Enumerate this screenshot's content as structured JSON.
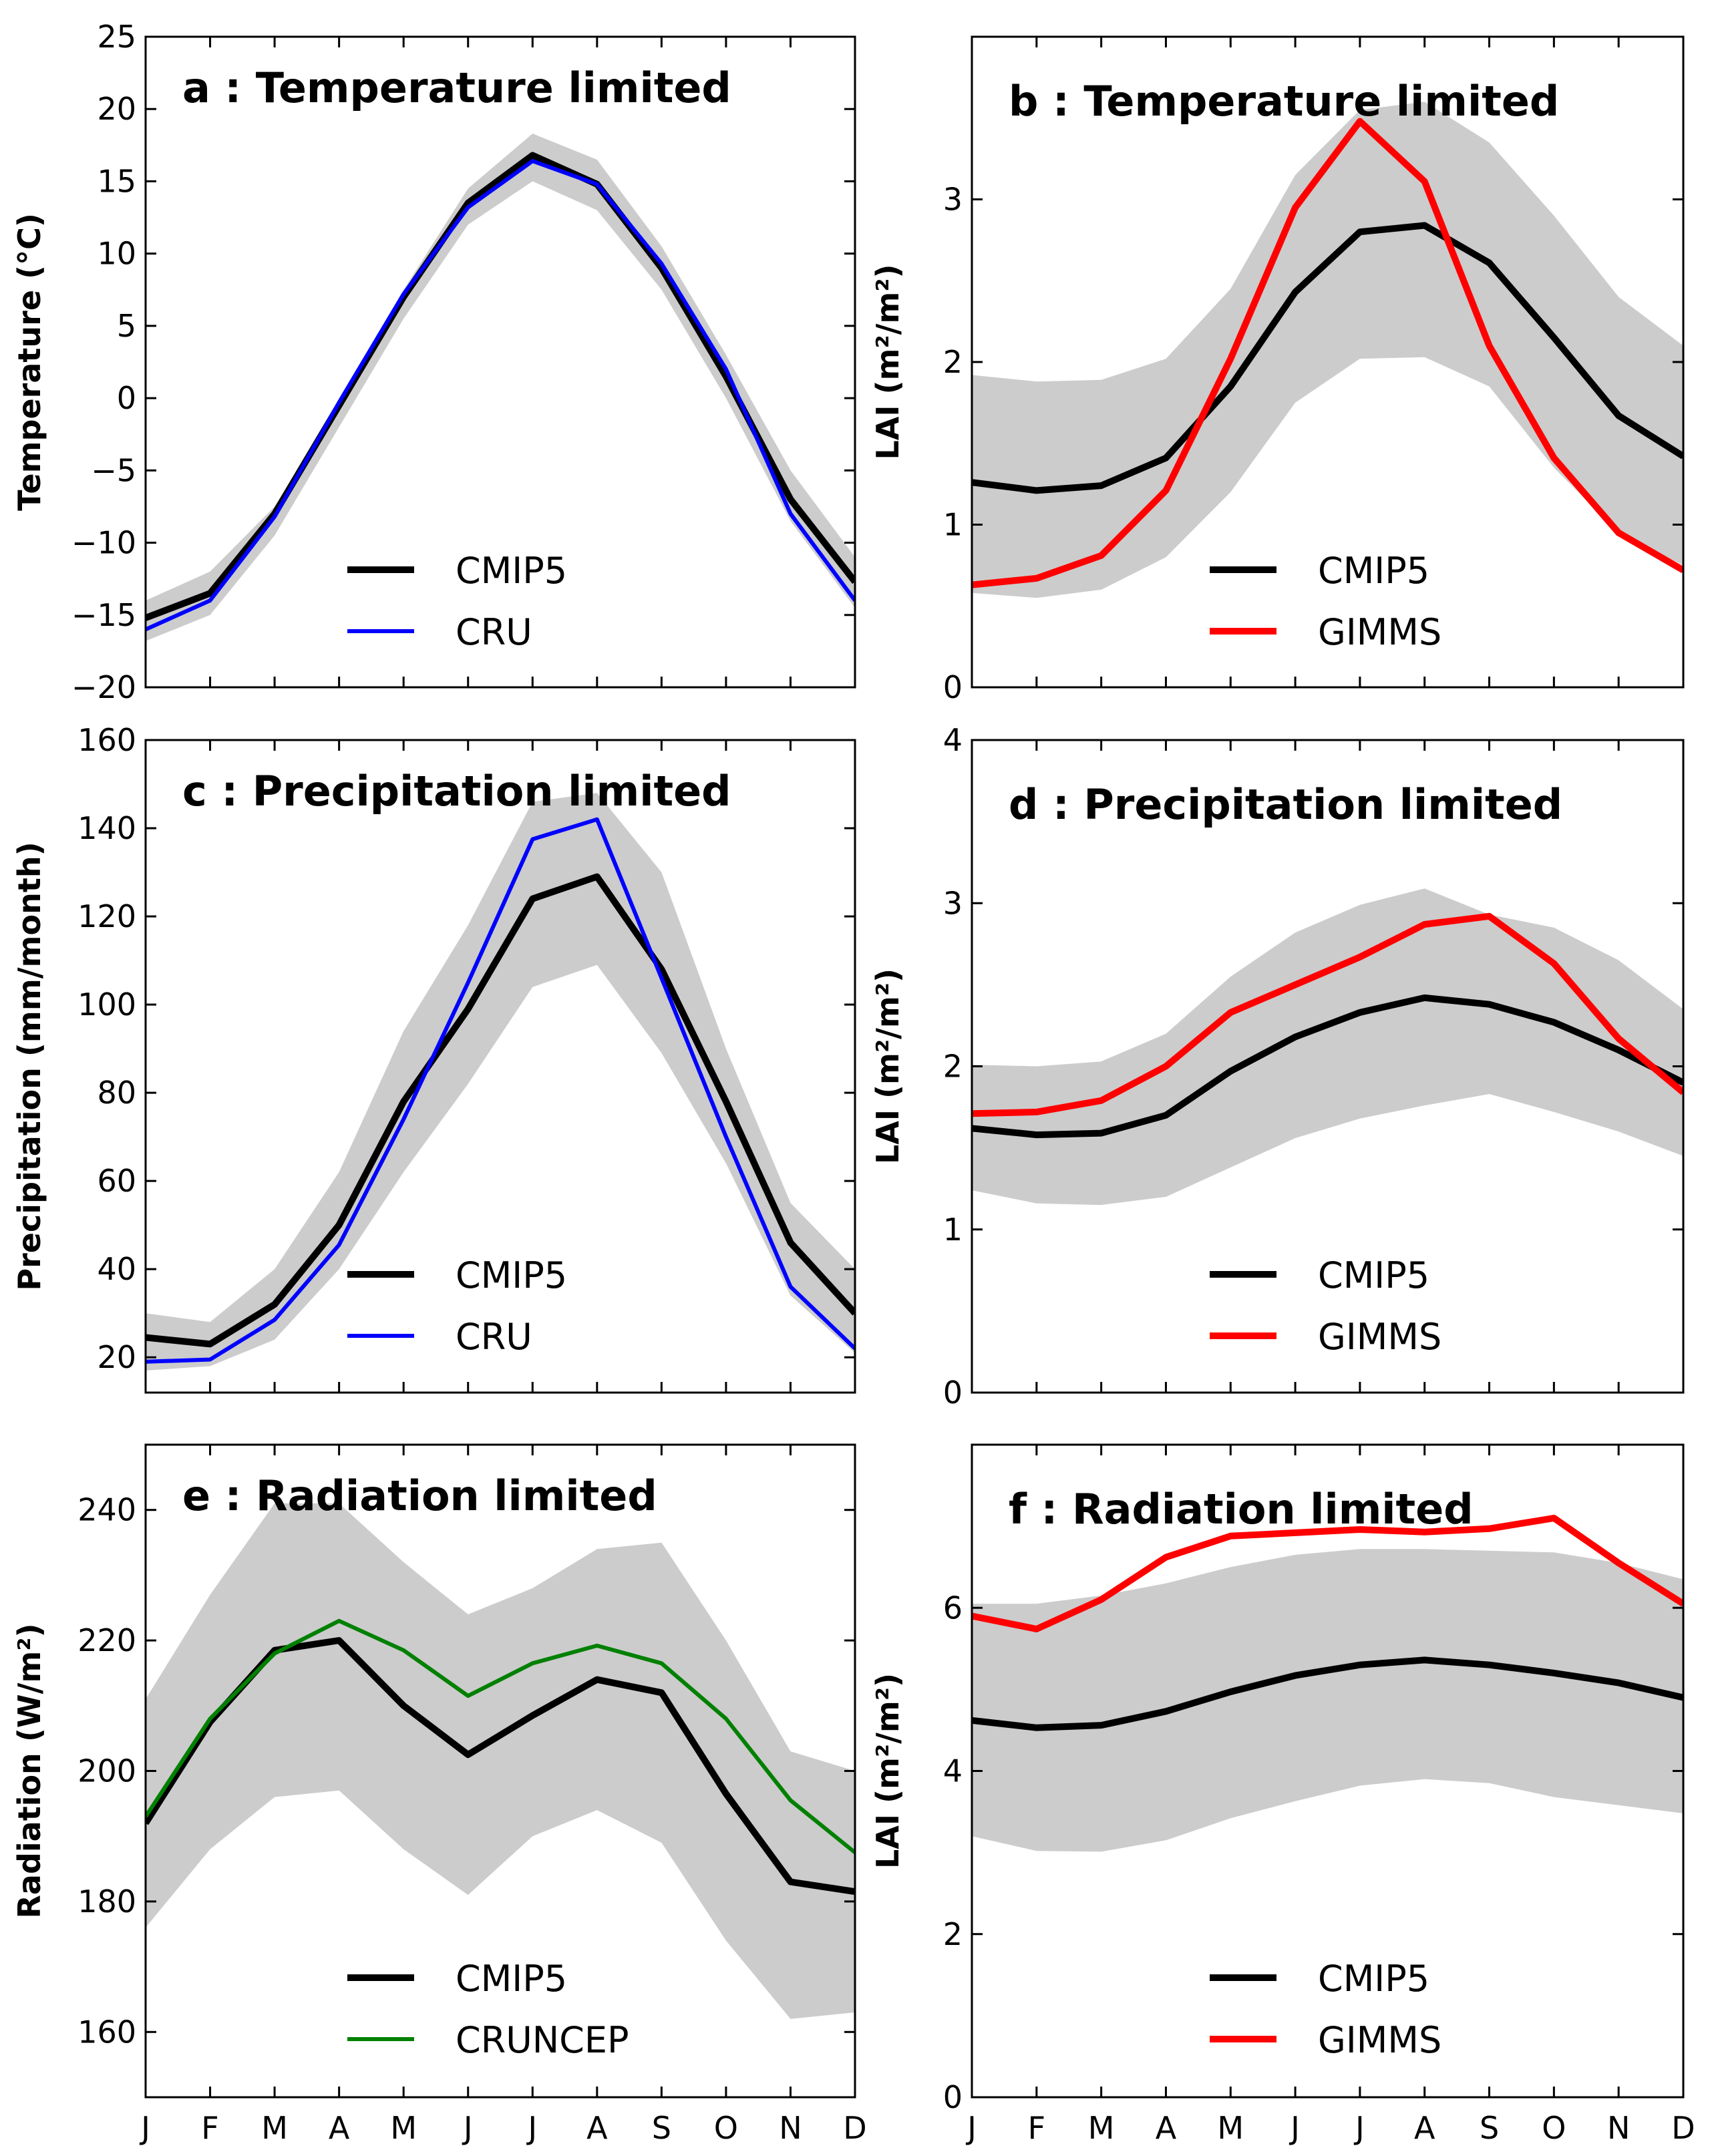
{
  "chart_data": [
    {
      "id": "a",
      "type": "line",
      "title": "a : Temperature limited",
      "ylabel": "Temperature (°C)",
      "ylim": [
        -20,
        25
      ],
      "yticks": [
        -20,
        -15,
        -10,
        -5,
        0,
        5,
        10,
        15,
        20,
        25
      ],
      "ytick_labels": [
        "−20",
        "−15",
        "−10",
        "−5",
        "0",
        "5",
        "10",
        "15",
        "20",
        "25"
      ],
      "categories": [
        "J",
        "F",
        "M",
        "A",
        "M",
        "J",
        "J",
        "A",
        "S",
        "O",
        "N",
        "D"
      ],
      "band": {
        "upper": [
          -14,
          -12,
          -7.5,
          -0.5,
          7.5,
          14.5,
          18.3,
          16.5,
          10.5,
          3,
          -5,
          -11
        ],
        "lower": [
          -16.8,
          -15,
          -9.5,
          -2,
          5.5,
          12,
          15,
          13,
          7.5,
          0,
          -8.5,
          -14.5
        ]
      },
      "series": [
        {
          "name": "CMIP5",
          "color": "#000000",
          "width": 10,
          "values": [
            -15.2,
            -13.5,
            -8,
            -0.5,
            7,
            13.5,
            16.8,
            14.8,
            9,
            1.5,
            -7,
            -12.7
          ]
        },
        {
          "name": "CRU",
          "color": "#0000ff",
          "width": 6,
          "values": [
            -16,
            -14,
            -8.2,
            -0.3,
            7.2,
            13.2,
            16.4,
            14.8,
            9.3,
            2,
            -8,
            -14
          ]
        }
      ]
    },
    {
      "id": "b",
      "type": "line",
      "title": "b : Temperature limited",
      "ylabel": "LAI (m²/m²)",
      "ylim": [
        0,
        4
      ],
      "yticks": [
        0,
        1,
        2,
        3
      ],
      "ytick_labels": [
        "0",
        "1",
        "2",
        "3"
      ],
      "categories": [
        "J",
        "F",
        "M",
        "A",
        "M",
        "J",
        "J",
        "A",
        "S",
        "O",
        "N",
        "D"
      ],
      "band": {
        "upper": [
          1.92,
          1.88,
          1.89,
          2.02,
          2.45,
          3.15,
          3.55,
          3.6,
          3.35,
          2.9,
          2.4,
          2.1
        ],
        "lower": [
          0.58,
          0.55,
          0.6,
          0.8,
          1.2,
          1.75,
          2.02,
          2.03,
          1.85,
          1.35,
          0.95,
          0.75
        ]
      },
      "series": [
        {
          "name": "CMIP5",
          "color": "#000000",
          "width": 10,
          "values": [
            1.26,
            1.21,
            1.24,
            1.41,
            1.85,
            2.43,
            2.8,
            2.84,
            2.61,
            2.15,
            1.67,
            1.42
          ]
        },
        {
          "name": "GIMMS",
          "color": "#ff0000",
          "width": 10,
          "values": [
            0.63,
            0.67,
            0.81,
            1.21,
            2.02,
            2.95,
            3.48,
            3.11,
            2.1,
            1.41,
            0.95,
            0.72
          ]
        }
      ]
    },
    {
      "id": "c",
      "type": "line",
      "title": "c : Precipitation limited",
      "ylabel": "Precipitation (mm/month)",
      "ylim": [
        12,
        160
      ],
      "yticks": [
        20,
        40,
        60,
        80,
        100,
        120,
        140,
        160
      ],
      "ytick_labels": [
        "20",
        "40",
        "60",
        "80",
        "100",
        "120",
        "140",
        "160"
      ],
      "categories": [
        "J",
        "F",
        "M",
        "A",
        "M",
        "J",
        "J",
        "A",
        "S",
        "O",
        "N",
        "D"
      ],
      "band": {
        "upper": [
          30,
          28,
          40,
          62,
          94,
          118,
          146,
          148,
          130,
          90,
          55,
          40
        ],
        "lower": [
          17,
          18,
          24,
          40,
          62,
          82,
          104,
          109,
          89,
          64,
          34,
          21
        ]
      },
      "series": [
        {
          "name": "CMIP5",
          "color": "#000000",
          "width": 10,
          "values": [
            24.5,
            23,
            32,
            50,
            78,
            99,
            124,
            129,
            108,
            78,
            46,
            30
          ]
        },
        {
          "name": "CRU",
          "color": "#0000ff",
          "width": 6,
          "values": [
            19,
            19.5,
            28.5,
            45.5,
            74,
            105,
            137.5,
            142,
            106,
            70,
            36,
            22
          ]
        }
      ]
    },
    {
      "id": "d",
      "type": "line",
      "title": "d : Precipitation limited",
      "ylabel": "LAI (m²/m²)",
      "ylim": [
        0,
        4
      ],
      "yticks": [
        0,
        1,
        2,
        3,
        4
      ],
      "ytick_labels": [
        "0",
        "1",
        "2",
        "3",
        "4"
      ],
      "categories": [
        "J",
        "F",
        "M",
        "A",
        "M",
        "J",
        "J",
        "A",
        "S",
        "O",
        "N",
        "D"
      ],
      "band": {
        "upper": [
          2.01,
          2.0,
          2.03,
          2.2,
          2.55,
          2.82,
          2.99,
          3.09,
          2.93,
          2.85,
          2.65,
          2.35
        ],
        "lower": [
          1.24,
          1.16,
          1.15,
          1.2,
          1.38,
          1.56,
          1.68,
          1.76,
          1.83,
          1.72,
          1.6,
          1.45
        ]
      },
      "series": [
        {
          "name": "CMIP5",
          "color": "#000000",
          "width": 10,
          "values": [
            1.62,
            1.58,
            1.59,
            1.7,
            1.97,
            2.18,
            2.33,
            2.42,
            2.38,
            2.27,
            2.1,
            1.9
          ]
        },
        {
          "name": "GIMMS",
          "color": "#ff0000",
          "width": 10,
          "values": [
            1.71,
            1.72,
            1.79,
            2.0,
            2.33,
            2.5,
            2.67,
            2.87,
            2.92,
            2.63,
            2.17,
            1.84
          ]
        }
      ]
    },
    {
      "id": "e",
      "type": "line",
      "title": "e : Radiation limited",
      "ylabel": "Radiation (W/m²)",
      "ylim": [
        150,
        250
      ],
      "yticks": [
        160,
        180,
        200,
        220,
        240
      ],
      "ytick_labels": [
        "160",
        "180",
        "200",
        "220",
        "240"
      ],
      "categories": [
        "J",
        "F",
        "M",
        "A",
        "M",
        "J",
        "J",
        "A",
        "S",
        "O",
        "N",
        "D"
      ],
      "band": {
        "upper": [
          211,
          227,
          241,
          241,
          232,
          224,
          228,
          234,
          235,
          220,
          203,
          200
        ],
        "lower": [
          176,
          188,
          196,
          197,
          188,
          181,
          190,
          194,
          189,
          174,
          162,
          163
        ]
      },
      "series": [
        {
          "name": "CMIP5",
          "color": "#000000",
          "width": 10,
          "values": [
            192,
            207.5,
            218.5,
            220,
            210,
            202.5,
            208.5,
            214,
            212,
            196.5,
            183,
            181.5
          ]
        },
        {
          "name": "CRUNCEP",
          "color": "#008000",
          "width": 6,
          "values": [
            193,
            208,
            218,
            223,
            218.5,
            211.5,
            216.5,
            219.2,
            216.5,
            208,
            195.5,
            187.5
          ]
        }
      ]
    },
    {
      "id": "f",
      "type": "line",
      "title": "f : Radiation limited",
      "ylabel": "LAI (m²/m²)",
      "ylim": [
        0,
        8
      ],
      "yticks": [
        0,
        2,
        4,
        6
      ],
      "ytick_labels": [
        "0",
        "2",
        "4",
        "6"
      ],
      "categories": [
        "J",
        "F",
        "M",
        "A",
        "M",
        "J",
        "J",
        "A",
        "S",
        "O",
        "N",
        "D"
      ],
      "band": {
        "upper": [
          6.05,
          6.05,
          6.15,
          6.3,
          6.5,
          6.65,
          6.72,
          6.72,
          6.7,
          6.68,
          6.55,
          6.35
        ],
        "lower": [
          3.2,
          3.02,
          3.01,
          3.15,
          3.42,
          3.63,
          3.82,
          3.9,
          3.85,
          3.68,
          3.58,
          3.48
        ]
      },
      "series": [
        {
          "name": "CMIP5",
          "color": "#000000",
          "width": 10,
          "values": [
            4.62,
            4.53,
            4.56,
            4.73,
            4.97,
            5.17,
            5.3,
            5.36,
            5.3,
            5.2,
            5.08,
            4.9
          ]
        },
        {
          "name": "GIMMS",
          "color": "#ff0000",
          "width": 10,
          "values": [
            5.9,
            5.74,
            6.1,
            6.62,
            6.88,
            6.92,
            6.96,
            6.93,
            6.97,
            7.1,
            6.55,
            6.05
          ]
        }
      ]
    }
  ],
  "colors": {
    "band": "#cccccc",
    "axes": "#000000"
  }
}
